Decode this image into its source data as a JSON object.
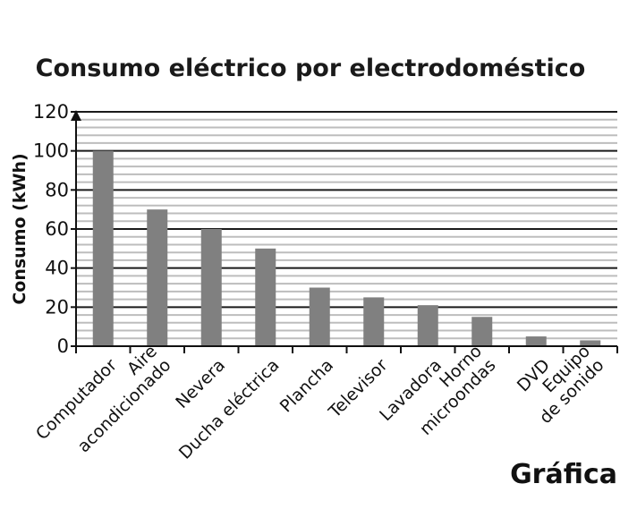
{
  "chart_data": {
    "type": "bar",
    "title": "Consumo eléctrico por electrodoméstico",
    "ylabel": "Consumo (kWh)",
    "xlabel": "",
    "ylim": [
      0,
      120
    ],
    "yticks": [
      0,
      20,
      40,
      60,
      80,
      100,
      120
    ],
    "minor_grid_step": 4,
    "grid": true,
    "categories": [
      [
        "Computador"
      ],
      [
        "Aire",
        "acondicionado"
      ],
      [
        "Nevera"
      ],
      [
        "Ducha eléctrica"
      ],
      [
        "Plancha"
      ],
      [
        "Televisor"
      ],
      [
        "Lavadora"
      ],
      [
        "Horno",
        "microondas"
      ],
      [
        "DVD"
      ],
      [
        "Equipo",
        "de sonido"
      ]
    ],
    "values": [
      100,
      70,
      60,
      50,
      30,
      25,
      21,
      15,
      5,
      3
    ],
    "bar_color": "#808080",
    "caption": "Gráfica"
  }
}
